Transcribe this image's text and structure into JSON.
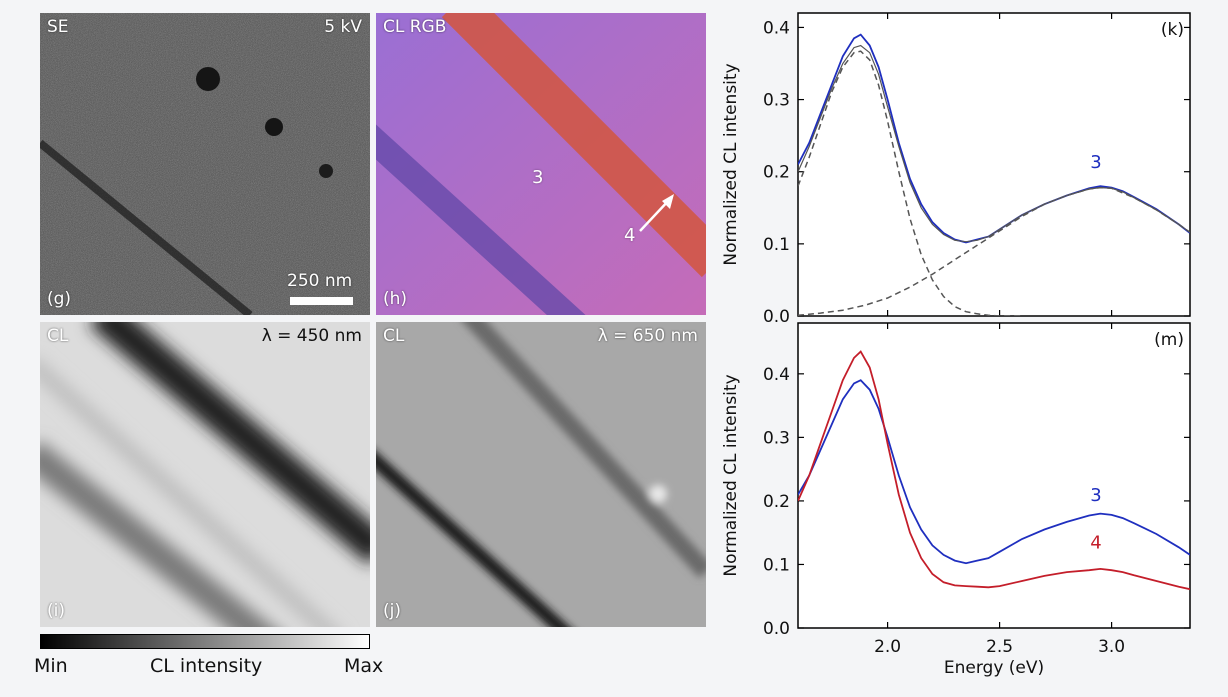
{
  "colors": {
    "blue": "#1f2fbf",
    "red": "#c41e2a",
    "fit": "#555555"
  },
  "images": {
    "g": {
      "label": "(g)",
      "title": "SE",
      "info": "5 kV",
      "scalebar": "250 nm"
    },
    "h": {
      "label": "(h)",
      "title": "CL RGB",
      "point3": "3",
      "point4": "4"
    },
    "i": {
      "label": "(i)",
      "title": "CL",
      "info": "λ = 450 nm"
    },
    "j": {
      "label": "(j)",
      "title": "CL",
      "info": "λ = 650 nm"
    }
  },
  "colorbar": {
    "min": "Min",
    "label": "CL intensity",
    "max": "Max"
  },
  "chart_data": [
    {
      "type": "line",
      "panel": "(k)",
      "ylabel": "Normalized CL intensity",
      "xlim": [
        1.6,
        3.35
      ],
      "ylim": [
        0.0,
        0.42
      ],
      "yticks": [
        "0.0",
        "0.1",
        "0.2",
        "0.3",
        "0.4"
      ],
      "annotation": "3",
      "series": [
        {
          "name": "3",
          "style": "measured",
          "x": [
            1.6,
            1.65,
            1.7,
            1.75,
            1.8,
            1.85,
            1.88,
            1.92,
            1.96,
            2.0,
            2.05,
            2.1,
            2.15,
            2.2,
            2.25,
            2.3,
            2.35,
            2.4,
            2.45,
            2.5,
            2.6,
            2.7,
            2.8,
            2.9,
            2.95,
            3.0,
            3.05,
            3.1,
            3.2,
            3.3,
            3.35
          ],
          "y": [
            0.21,
            0.24,
            0.28,
            0.32,
            0.36,
            0.385,
            0.39,
            0.375,
            0.345,
            0.3,
            0.24,
            0.19,
            0.155,
            0.13,
            0.115,
            0.106,
            0.102,
            0.106,
            0.11,
            0.12,
            0.14,
            0.155,
            0.167,
            0.177,
            0.18,
            0.178,
            0.173,
            0.165,
            0.148,
            0.127,
            0.115
          ]
        },
        {
          "style": "fit-sum",
          "x": [
            1.6,
            1.65,
            1.7,
            1.75,
            1.8,
            1.85,
            1.88,
            1.92,
            1.96,
            2.0,
            2.05,
            2.1,
            2.15,
            2.2,
            2.25,
            2.3,
            2.35,
            2.4,
            2.45,
            2.5,
            2.6,
            2.7,
            2.8,
            2.9,
            2.95,
            3.0,
            3.05,
            3.1,
            3.2,
            3.3,
            3.35
          ],
          "y": [
            0.2,
            0.235,
            0.275,
            0.315,
            0.35,
            0.372,
            0.375,
            0.365,
            0.335,
            0.29,
            0.235,
            0.185,
            0.15,
            0.127,
            0.113,
            0.105,
            0.103,
            0.105,
            0.11,
            0.12,
            0.14,
            0.155,
            0.167,
            0.176,
            0.178,
            0.177,
            0.172,
            0.164,
            0.147,
            0.127,
            0.116
          ]
        },
        {
          "style": "fit-component",
          "x": [
            1.6,
            1.65,
            1.7,
            1.75,
            1.8,
            1.85,
            1.88,
            1.92,
            1.96,
            2.0,
            2.05,
            2.1,
            2.15,
            2.2,
            2.25,
            2.3,
            2.35,
            2.4,
            2.45,
            2.5,
            2.6
          ],
          "y": [
            0.18,
            0.22,
            0.265,
            0.31,
            0.345,
            0.365,
            0.367,
            0.355,
            0.32,
            0.27,
            0.2,
            0.135,
            0.085,
            0.05,
            0.027,
            0.013,
            0.006,
            0.003,
            0.001,
            0.0,
            0.0
          ]
        },
        {
          "style": "fit-component",
          "x": [
            1.6,
            1.7,
            1.8,
            1.9,
            2.0,
            2.1,
            2.2,
            2.3,
            2.4,
            2.5,
            2.6,
            2.7,
            2.8,
            2.9,
            2.95,
            3.0,
            3.1,
            3.2,
            3.3,
            3.35
          ],
          "y": [
            0.001,
            0.004,
            0.008,
            0.015,
            0.025,
            0.04,
            0.058,
            0.078,
            0.098,
            0.118,
            0.138,
            0.155,
            0.167,
            0.176,
            0.178,
            0.177,
            0.164,
            0.147,
            0.127,
            0.116
          ]
        }
      ]
    },
    {
      "type": "line",
      "panel": "(m)",
      "ylabel": "Normalized CL intensity",
      "xlabel": "Energy (eV)",
      "xlim": [
        1.6,
        3.35
      ],
      "ylim": [
        0.0,
        0.48
      ],
      "xticks": [
        "2.0",
        "2.5",
        "3.0"
      ],
      "yticks": [
        "0.0",
        "0.1",
        "0.2",
        "0.3",
        "0.4"
      ],
      "series": [
        {
          "name": "3",
          "x": [
            1.6,
            1.65,
            1.7,
            1.75,
            1.8,
            1.85,
            1.88,
            1.92,
            1.96,
            2.0,
            2.05,
            2.1,
            2.15,
            2.2,
            2.25,
            2.3,
            2.35,
            2.4,
            2.45,
            2.5,
            2.6,
            2.7,
            2.8,
            2.9,
            2.95,
            3.0,
            3.05,
            3.1,
            3.2,
            3.3,
            3.35
          ],
          "y": [
            0.21,
            0.24,
            0.28,
            0.32,
            0.36,
            0.385,
            0.39,
            0.375,
            0.345,
            0.3,
            0.24,
            0.19,
            0.155,
            0.13,
            0.115,
            0.106,
            0.102,
            0.106,
            0.11,
            0.12,
            0.14,
            0.155,
            0.167,
            0.177,
            0.18,
            0.178,
            0.173,
            0.165,
            0.148,
            0.127,
            0.115
          ]
        },
        {
          "name": "4",
          "x": [
            1.6,
            1.65,
            1.7,
            1.75,
            1.8,
            1.85,
            1.88,
            1.92,
            1.96,
            2.0,
            2.05,
            2.1,
            2.15,
            2.2,
            2.25,
            2.3,
            2.35,
            2.4,
            2.45,
            2.5,
            2.6,
            2.7,
            2.8,
            2.9,
            2.95,
            3.0,
            3.05,
            3.1,
            3.2,
            3.3,
            3.35
          ],
          "y": [
            0.2,
            0.24,
            0.29,
            0.34,
            0.39,
            0.425,
            0.435,
            0.41,
            0.36,
            0.29,
            0.21,
            0.15,
            0.11,
            0.085,
            0.072,
            0.067,
            0.066,
            0.065,
            0.064,
            0.066,
            0.074,
            0.082,
            0.088,
            0.091,
            0.093,
            0.091,
            0.088,
            0.083,
            0.074,
            0.065,
            0.061
          ]
        }
      ]
    }
  ]
}
